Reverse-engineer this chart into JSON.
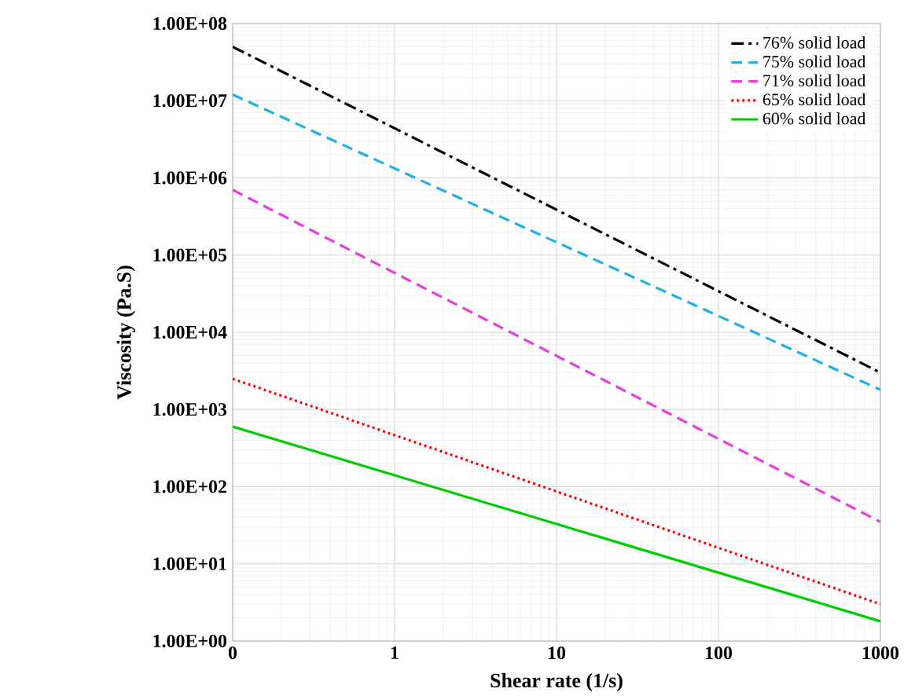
{
  "chart_data": {
    "type": "line",
    "xlabel": "Shear rate (1/s)",
    "ylabel": "Viscosity  (Pa.S)",
    "log": "xy",
    "grid": true,
    "legend": "top right",
    "xlim": [
      0.1,
      1000
    ],
    "xticks": [
      {
        "value": 0.1,
        "label": "0"
      },
      1,
      10,
      100,
      1000
    ],
    "ylim": [
      1,
      100000000
    ],
    "yticks": [
      {
        "value": 1,
        "label": "1.00E+00"
      },
      {
        "value": 10,
        "label": "1.00E+01"
      },
      {
        "value": 100,
        "label": "1.00E+02"
      },
      {
        "value": 1000,
        "label": "1.00E+03"
      },
      {
        "value": 10000,
        "label": "1.00E+04"
      },
      {
        "value": 100000,
        "label": "1.00E+05"
      },
      {
        "value": 1000000,
        "label": "1.00E+06"
      },
      {
        "value": 10000000,
        "label": "1.00E+07"
      },
      {
        "value": 100000000,
        "label": "1.00E+08"
      }
    ],
    "x": [
      0.1,
      1000
    ],
    "series": [
      {
        "name": "76% solid load",
        "color": "#000000",
        "line_style": "dashdot",
        "values": [
          50000000,
          3000
        ]
      },
      {
        "name": "75% solid load",
        "color": "#1fb0e8",
        "line_style": "dashed",
        "values": [
          12000000,
          1800
        ]
      },
      {
        "name": "71% solid load",
        "color": "#e83ee0",
        "line_style": "dashed",
        "values": [
          700000,
          35
        ]
      },
      {
        "name": "65% solid load",
        "color": "#ff0000",
        "line_style": "dotted",
        "values": [
          2500,
          3
        ]
      },
      {
        "name": "60% solid load",
        "color": "#00cc00",
        "line_style": "solid",
        "values": [
          600,
          1.8
        ]
      }
    ]
  }
}
